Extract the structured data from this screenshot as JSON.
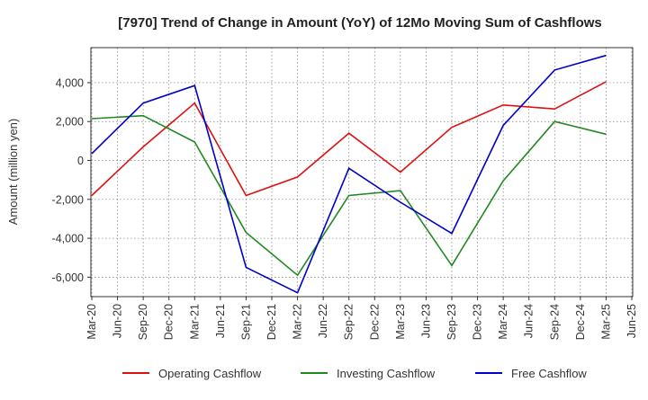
{
  "chart_data": {
    "type": "line",
    "title": "[7970]  Trend of Change in Amount (YoY) of 12Mo Moving Sum of Cashflows",
    "xlabel": "",
    "ylabel": "Amount (million yen)",
    "categories": [
      "Mar-20",
      "Jun-20",
      "Sep-20",
      "Dec-20",
      "Mar-21",
      "Jun-21",
      "Sep-21",
      "Dec-21",
      "Mar-22",
      "Jun-22",
      "Sep-22",
      "Dec-22",
      "Mar-23",
      "Jun-23",
      "Sep-23",
      "Dec-23",
      "Mar-24",
      "Jun-24",
      "Sep-24",
      "Dec-24",
      "Mar-25",
      "Jun-25"
    ],
    "ylim": [
      -7000,
      5800
    ],
    "yticks": [
      -6000,
      -4000,
      -2000,
      0,
      2000,
      4000
    ],
    "ytick_labels": [
      "-6,000",
      "-4,000",
      "-2,000",
      "0",
      "2,000",
      "4,000"
    ],
    "series": [
      {
        "name": "Operating Cashflow",
        "color": "#dd1111",
        "values": [
          -1800,
          null,
          700,
          null,
          2950,
          null,
          -1800,
          null,
          -850,
          null,
          1400,
          null,
          -600,
          null,
          1700,
          null,
          2850,
          null,
          2650,
          null,
          4050,
          null
        ]
      },
      {
        "name": "Investing Cashflow",
        "color": "#228822",
        "values": [
          2150,
          null,
          2300,
          null,
          950,
          null,
          -3700,
          null,
          -5900,
          null,
          -1800,
          null,
          -1550,
          null,
          -5400,
          null,
          -1050,
          null,
          2000,
          null,
          1350,
          null
        ]
      },
      {
        "name": "Free Cashflow",
        "color": "#0000cc",
        "values": [
          350,
          null,
          2950,
          null,
          3850,
          null,
          -5500,
          null,
          -6800,
          null,
          -400,
          null,
          -2150,
          null,
          -3750,
          null,
          1800,
          null,
          4650,
          null,
          5400,
          null
        ]
      }
    ],
    "grid": true,
    "legend_position": "bottom"
  }
}
